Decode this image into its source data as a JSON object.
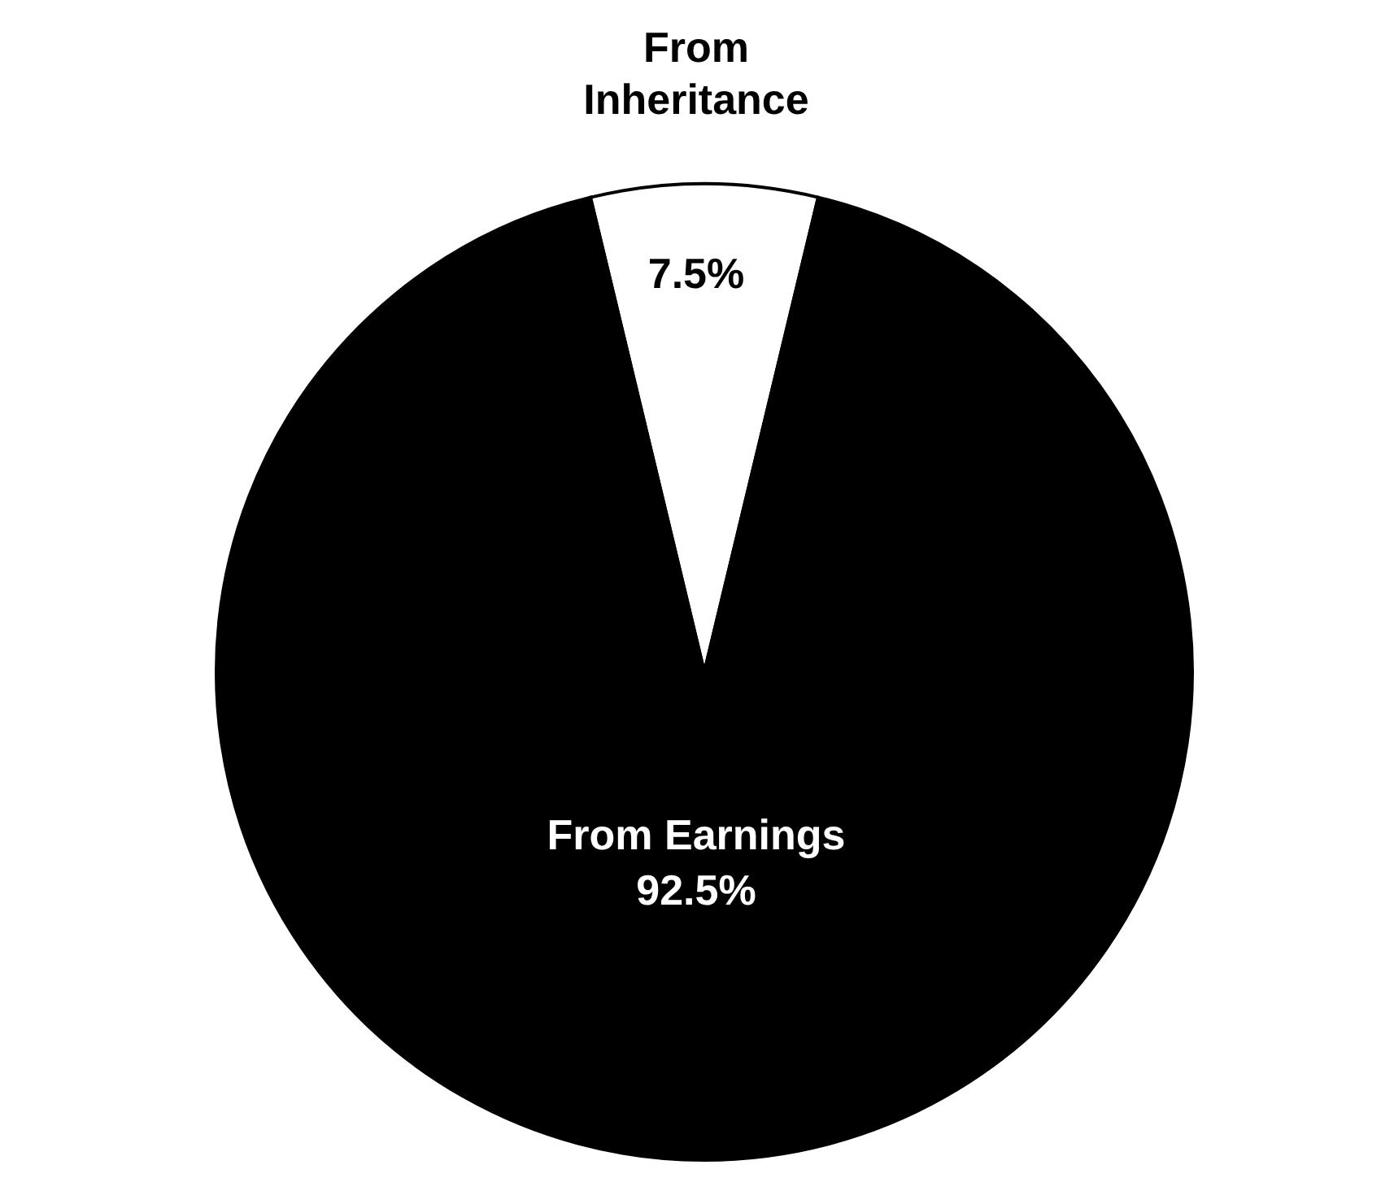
{
  "chart_data": {
    "type": "pie",
    "categories": [
      "From Inheritance",
      "From Earnings"
    ],
    "values": [
      7.5,
      92.5
    ],
    "colors": [
      "#ffffff",
      "#000000"
    ],
    "value_labels": [
      "7.5%",
      "92.5%"
    ],
    "legend": false
  }
}
